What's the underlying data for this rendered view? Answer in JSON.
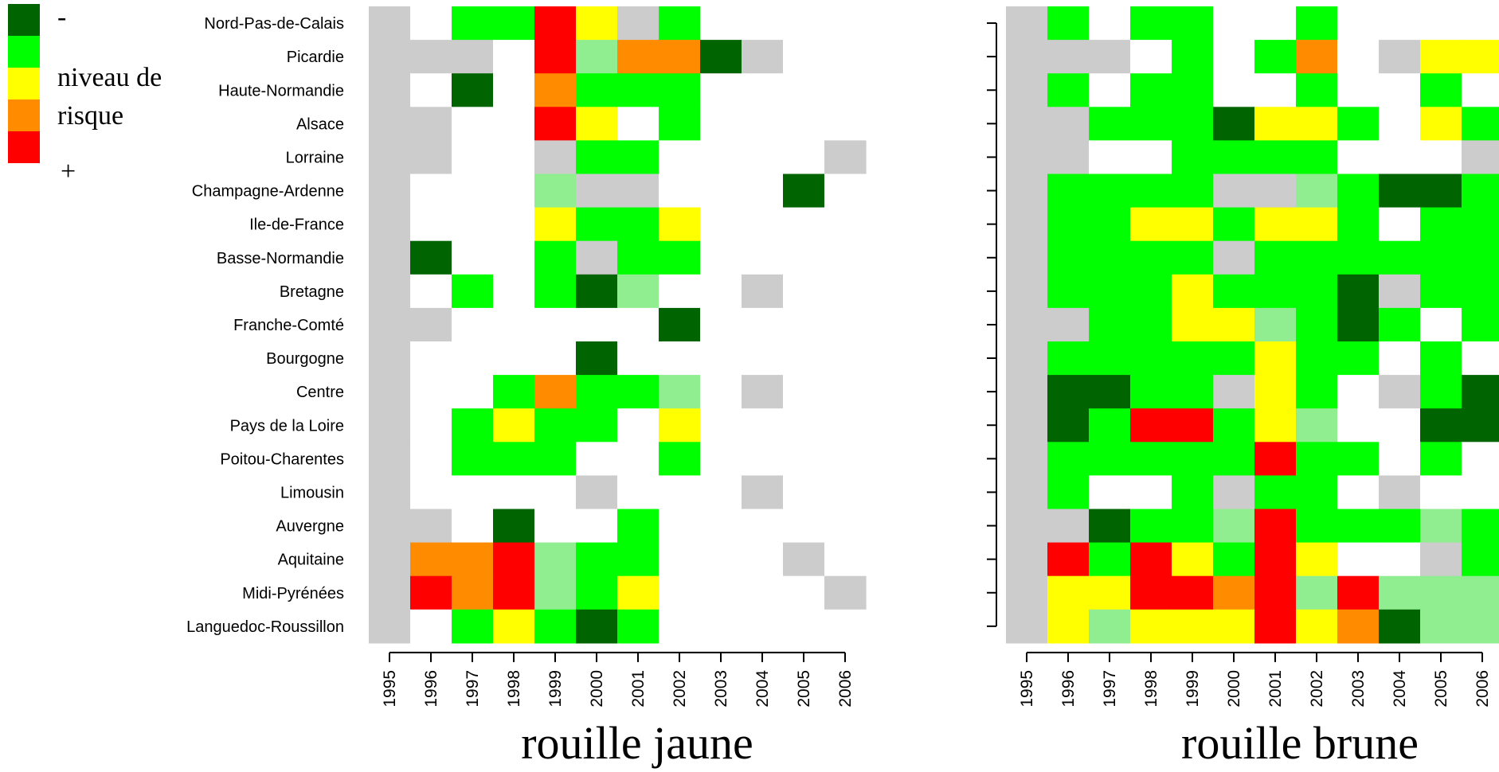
{
  "legend": {
    "labels": [
      "-",
      "niveau de",
      "risque",
      "+"
    ],
    "swatches": [
      "#006400",
      "#00ff00",
      "#ffff00",
      "#ff8c00",
      "#ff0000"
    ]
  },
  "chart_data": [
    {
      "type": "heatmap",
      "title": "rouille jaune",
      "x": [
        "1995",
        "1996",
        "1997",
        "1998",
        "1999",
        "2000",
        "2001",
        "2002",
        "2003",
        "2004",
        "2005",
        "2006"
      ],
      "y": [
        "Nord-Pas-de-Calais",
        "Picardie",
        "Haute-Normandie",
        "Alsace",
        "Lorraine",
        "Champagne-Ardenne",
        "Ile-de-France",
        "Basse-Normandie",
        "Bretagne",
        "Franche-Comté",
        "Bourgogne",
        "Centre",
        "Pays de la Loire",
        "Poitou-Charentes",
        "Limousin",
        "Auvergne",
        "Aquitaine",
        "Midi-Pyrénées",
        "Languedoc-Roussillon"
      ],
      "value_codes": {
        "G": "missing (grey)",
        "W": "no data (white)",
        "D": "level 1 (dark green)",
        "L": "level 1.5 (light green)",
        "N": "level 2 (green)",
        "Y": "level 3 (yellow)",
        "O": "level 4 (orange)",
        "R": "level 5 (red)"
      },
      "values": [
        [
          "G",
          "W",
          "N",
          "N",
          "R",
          "Y",
          "G",
          "N",
          "W",
          "W",
          "W",
          "W"
        ],
        [
          "G",
          "G",
          "G",
          "W",
          "R",
          "L",
          "O",
          "O",
          "D",
          "G",
          "W",
          "W"
        ],
        [
          "G",
          "W",
          "D",
          "W",
          "O",
          "N",
          "N",
          "N",
          "W",
          "W",
          "W",
          "W"
        ],
        [
          "G",
          "G",
          "W",
          "W",
          "R",
          "Y",
          "W",
          "N",
          "W",
          "W",
          "W",
          "W"
        ],
        [
          "G",
          "G",
          "W",
          "W",
          "G",
          "N",
          "N",
          "W",
          "W",
          "W",
          "W",
          "G"
        ],
        [
          "G",
          "W",
          "W",
          "W",
          "L",
          "G",
          "G",
          "W",
          "W",
          "W",
          "D",
          "W"
        ],
        [
          "G",
          "W",
          "W",
          "W",
          "Y",
          "N",
          "N",
          "Y",
          "W",
          "W",
          "W",
          "W"
        ],
        [
          "G",
          "D",
          "W",
          "W",
          "N",
          "G",
          "N",
          "N",
          "W",
          "W",
          "W",
          "W"
        ],
        [
          "G",
          "W",
          "N",
          "W",
          "N",
          "D",
          "L",
          "W",
          "W",
          "G",
          "W",
          "W"
        ],
        [
          "G",
          "G",
          "W",
          "W",
          "W",
          "W",
          "W",
          "D",
          "W",
          "W",
          "W",
          "W"
        ],
        [
          "G",
          "W",
          "W",
          "W",
          "W",
          "D",
          "W",
          "W",
          "W",
          "W",
          "W",
          "W"
        ],
        [
          "G",
          "W",
          "W",
          "N",
          "O",
          "N",
          "N",
          "L",
          "W",
          "G",
          "W",
          "W"
        ],
        [
          "G",
          "W",
          "N",
          "Y",
          "N",
          "N",
          "W",
          "Y",
          "W",
          "W",
          "W",
          "W"
        ],
        [
          "G",
          "W",
          "N",
          "N",
          "N",
          "W",
          "W",
          "N",
          "W",
          "W",
          "W",
          "W"
        ],
        [
          "G",
          "W",
          "W",
          "W",
          "W",
          "G",
          "W",
          "W",
          "W",
          "G",
          "W",
          "W"
        ],
        [
          "G",
          "G",
          "W",
          "D",
          "W",
          "W",
          "N",
          "W",
          "W",
          "W",
          "W",
          "W"
        ],
        [
          "G",
          "O",
          "O",
          "R",
          "L",
          "N",
          "N",
          "W",
          "W",
          "W",
          "G",
          "W"
        ],
        [
          "G",
          "R",
          "O",
          "R",
          "L",
          "N",
          "Y",
          "W",
          "W",
          "W",
          "W",
          "G"
        ],
        [
          "G",
          "W",
          "N",
          "Y",
          "N",
          "D",
          "N",
          "W",
          "W",
          "W",
          "W",
          "W"
        ]
      ]
    },
    {
      "type": "heatmap",
      "title": "rouille brune",
      "x": [
        "1995",
        "1996",
        "1997",
        "1998",
        "1999",
        "2000",
        "2001",
        "2002",
        "2003",
        "2004",
        "2005",
        "2006"
      ],
      "y": [
        "Nord-Pas-de-Calais",
        "Picardie",
        "Haute-Normandie",
        "Alsace",
        "Lorraine",
        "Champagne-Ardenne",
        "Ile-de-France",
        "Basse-Normandie",
        "Bretagne",
        "Franche-Comté",
        "Bourgogne",
        "Centre",
        "Pays de la Loire",
        "Poitou-Charentes",
        "Limousin",
        "Auvergne",
        "Aquitaine",
        "Midi-Pyrénées",
        "Languedoc-Roussillon"
      ],
      "values": [
        [
          "G",
          "N",
          "W",
          "N",
          "N",
          "W",
          "W",
          "N",
          "W",
          "W",
          "W",
          "W"
        ],
        [
          "G",
          "G",
          "G",
          "W",
          "N",
          "W",
          "N",
          "O",
          "W",
          "G",
          "Y",
          "Y"
        ],
        [
          "G",
          "N",
          "W",
          "N",
          "N",
          "W",
          "W",
          "N",
          "W",
          "W",
          "N",
          "W"
        ],
        [
          "G",
          "G",
          "N",
          "N",
          "N",
          "D",
          "Y",
          "Y",
          "N",
          "W",
          "Y",
          "N"
        ],
        [
          "G",
          "G",
          "W",
          "W",
          "N",
          "N",
          "N",
          "N",
          "W",
          "W",
          "W",
          "G"
        ],
        [
          "G",
          "N",
          "N",
          "N",
          "N",
          "G",
          "G",
          "L",
          "N",
          "D",
          "D",
          "N"
        ],
        [
          "G",
          "N",
          "N",
          "Y",
          "Y",
          "N",
          "Y",
          "Y",
          "N",
          "W",
          "N",
          "N"
        ],
        [
          "G",
          "N",
          "N",
          "N",
          "N",
          "G",
          "N",
          "N",
          "N",
          "N",
          "N",
          "N"
        ],
        [
          "G",
          "N",
          "N",
          "N",
          "Y",
          "N",
          "N",
          "N",
          "D",
          "G",
          "N",
          "N"
        ],
        [
          "G",
          "G",
          "N",
          "N",
          "Y",
          "Y",
          "L",
          "N",
          "D",
          "N",
          "W",
          "N"
        ],
        [
          "G",
          "N",
          "N",
          "N",
          "N",
          "N",
          "Y",
          "N",
          "N",
          "W",
          "N",
          "W"
        ],
        [
          "G",
          "D",
          "D",
          "N",
          "N",
          "G",
          "Y",
          "N",
          "W",
          "G",
          "N",
          "D"
        ],
        [
          "G",
          "D",
          "N",
          "R",
          "R",
          "N",
          "Y",
          "L",
          "W",
          "W",
          "D",
          "D"
        ],
        [
          "G",
          "N",
          "N",
          "N",
          "N",
          "N",
          "R",
          "N",
          "N",
          "W",
          "N",
          "W"
        ],
        [
          "G",
          "N",
          "W",
          "W",
          "N",
          "G",
          "N",
          "N",
          "W",
          "G",
          "W",
          "W"
        ],
        [
          "G",
          "G",
          "D",
          "N",
          "N",
          "L",
          "R",
          "N",
          "N",
          "N",
          "L",
          "N"
        ],
        [
          "G",
          "R",
          "N",
          "R",
          "Y",
          "N",
          "R",
          "Y",
          "W",
          "W",
          "G",
          "N"
        ],
        [
          "G",
          "Y",
          "Y",
          "R",
          "R",
          "O",
          "R",
          "L",
          "R",
          "L",
          "L",
          "L"
        ],
        [
          "G",
          "Y",
          "L",
          "Y",
          "Y",
          "Y",
          "R",
          "Y",
          "O",
          "D",
          "L",
          "L"
        ]
      ]
    }
  ],
  "colors": {
    "G": "#cccccc",
    "W": "#ffffff",
    "D": "#006400",
    "L": "#90ee90",
    "N": "#00ff00",
    "Y": "#ffff00",
    "O": "#ff8c00",
    "R": "#ff0000"
  }
}
